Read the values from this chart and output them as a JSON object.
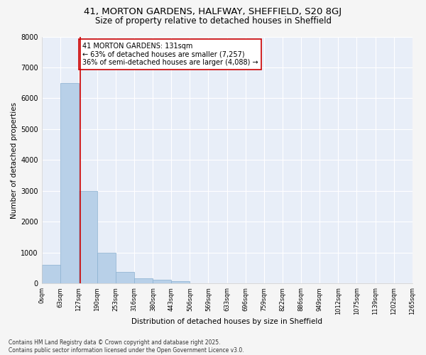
{
  "title": "41, MORTON GARDENS, HALFWAY, SHEFFIELD, S20 8GJ",
  "subtitle": "Size of property relative to detached houses in Sheffield",
  "xlabel": "Distribution of detached houses by size in Sheffield",
  "ylabel": "Number of detached properties",
  "bar_color": "#b8d0e8",
  "bar_edge_color": "#8ab0d0",
  "background_color": "#e8eef8",
  "grid_color": "#ffffff",
  "fig_background": "#f5f5f5",
  "bins": [
    0,
    63,
    127,
    190,
    253,
    316,
    380,
    443,
    506,
    569,
    633,
    696,
    759,
    822,
    886,
    949,
    1012,
    1075,
    1139,
    1202,
    1265
  ],
  "bin_labels": [
    "0sqm",
    "63sqm",
    "127sqm",
    "190sqm",
    "253sqm",
    "316sqm",
    "380sqm",
    "443sqm",
    "506sqm",
    "569sqm",
    "633sqm",
    "696sqm",
    "759sqm",
    "822sqm",
    "886sqm",
    "949sqm",
    "1012sqm",
    "1075sqm",
    "1139sqm",
    "1202sqm",
    "1265sqm"
  ],
  "values": [
    600,
    6500,
    3000,
    1000,
    380,
    180,
    120,
    80,
    0,
    0,
    0,
    0,
    0,
    0,
    0,
    0,
    0,
    0,
    0,
    0
  ],
  "vline_x": 131,
  "vline_color": "#cc0000",
  "annotation_text": "41 MORTON GARDENS: 131sqm\n← 63% of detached houses are smaller (7,257)\n36% of semi-detached houses are larger (4,088) →",
  "annotation_box_color": "#ffffff",
  "annotation_box_edgecolor": "#cc0000",
  "ylim": [
    0,
    8000
  ],
  "yticks": [
    0,
    1000,
    2000,
    3000,
    4000,
    5000,
    6000,
    7000,
    8000
  ],
  "footer_text": "Contains HM Land Registry data © Crown copyright and database right 2025.\nContains public sector information licensed under the Open Government Licence v3.0.",
  "title_fontsize": 9.5,
  "subtitle_fontsize": 8.5,
  "label_fontsize": 7.5,
  "tick_fontsize": 6,
  "annotation_fontsize": 7,
  "ylabel_fontsize": 7.5
}
